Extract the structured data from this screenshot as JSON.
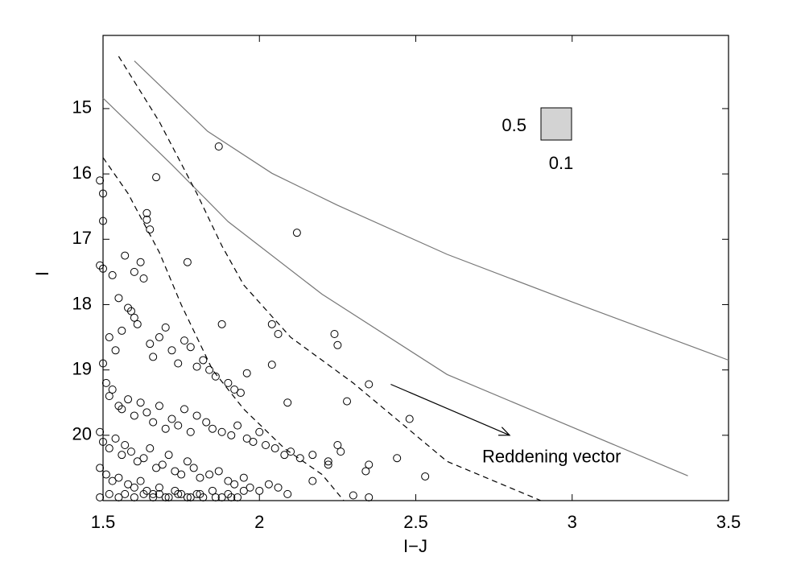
{
  "chart_data": {
    "type": "scatter",
    "x_label": "I−J",
    "y_label": "I",
    "xlim": [
      1.5,
      3.5
    ],
    "xticks": [
      1.5,
      2,
      2.5,
      3,
      3.5
    ],
    "ylim": [
      21,
      13.88
    ],
    "yticks": [
      15,
      16,
      17,
      18,
      19,
      20
    ],
    "series": [
      {
        "color": "#000000",
        "x": [
          1.87,
          2.12,
          1.67,
          1.49,
          1.5,
          1.5,
          1.64,
          1.64,
          1.65,
          1.77,
          1.88,
          2.04,
          2.06,
          2.24,
          2.25,
          2.04,
          2.35,
          1.96,
          2.28,
          2.09,
          2.48,
          2.25,
          2.26,
          2.44,
          2.35,
          2.34,
          2.53,
          2.3,
          2.35,
          2.22,
          2.22,
          2.17,
          2.17,
          1.49,
          1.5,
          1.53,
          1.55,
          1.57,
          1.6,
          1.62,
          1.63,
          1.58,
          1.6,
          1.52,
          1.54,
          1.56,
          1.59,
          1.61,
          1.65,
          1.66,
          1.68,
          1.7,
          1.72,
          1.74,
          1.76,
          1.78,
          1.8,
          1.82,
          1.84,
          1.86,
          1.9,
          1.92,
          1.94,
          1.5,
          1.51,
          1.52,
          1.53,
          1.55,
          1.56,
          1.58,
          1.6,
          1.62,
          1.64,
          1.66,
          1.68,
          1.7,
          1.72,
          1.74,
          1.76,
          1.78,
          1.8,
          1.83,
          1.85,
          1.88,
          1.91,
          1.93,
          1.96,
          1.98,
          2.0,
          2.02,
          2.05,
          2.08,
          2.1,
          2.13,
          1.49,
          1.5,
          1.52,
          1.54,
          1.56,
          1.57,
          1.59,
          1.61,
          1.63,
          1.65,
          1.67,
          1.69,
          1.71,
          1.73,
          1.75,
          1.77,
          1.79,
          1.81,
          1.84,
          1.87,
          1.9,
          1.92,
          1.95,
          1.97,
          2.0,
          2.03,
          2.06,
          2.09,
          1.49,
          1.51,
          1.53,
          1.55,
          1.58,
          1.6,
          1.62,
          1.64,
          1.66,
          1.68,
          1.7,
          1.73,
          1.75,
          1.78,
          1.8,
          1.82,
          1.85,
          1.88,
          1.9,
          1.93,
          1.95,
          1.49,
          1.52,
          1.55,
          1.57,
          1.6,
          1.63,
          1.66,
          1.68,
          1.71,
          1.74,
          1.77,
          1.81,
          1.86,
          1.91
        ],
        "y": [
          15.58,
          16.9,
          16.05,
          16.1,
          16.3,
          16.72,
          16.6,
          16.7,
          16.85,
          17.35,
          18.3,
          18.3,
          18.45,
          18.45,
          18.62,
          18.92,
          19.22,
          19.05,
          19.48,
          19.5,
          19.75,
          20.15,
          20.25,
          20.35,
          20.45,
          20.55,
          20.63,
          20.92,
          20.95,
          20.4,
          20.45,
          20.3,
          20.7,
          17.4,
          17.45,
          17.55,
          17.9,
          17.25,
          17.5,
          17.35,
          17.6,
          18.05,
          18.2,
          18.5,
          18.7,
          18.4,
          18.1,
          18.3,
          18.6,
          18.8,
          18.5,
          18.35,
          18.7,
          18.9,
          18.55,
          18.65,
          18.95,
          18.85,
          19.0,
          19.1,
          19.2,
          19.3,
          19.35,
          18.9,
          19.2,
          19.4,
          19.3,
          19.55,
          19.6,
          19.45,
          19.7,
          19.5,
          19.65,
          19.8,
          19.55,
          19.9,
          19.75,
          19.85,
          19.6,
          19.95,
          19.7,
          19.8,
          19.9,
          19.95,
          20.0,
          19.85,
          20.05,
          20.1,
          19.95,
          20.15,
          20.2,
          20.3,
          20.25,
          20.35,
          19.95,
          20.1,
          20.2,
          20.05,
          20.3,
          20.15,
          20.25,
          20.4,
          20.35,
          20.2,
          20.5,
          20.45,
          20.3,
          20.55,
          20.6,
          20.4,
          20.5,
          20.65,
          20.6,
          20.55,
          20.7,
          20.75,
          20.65,
          20.8,
          20.85,
          20.75,
          20.8,
          20.9,
          20.5,
          20.6,
          20.7,
          20.65,
          20.75,
          20.8,
          20.7,
          20.85,
          20.9,
          20.8,
          20.95,
          20.85,
          20.9,
          20.95,
          20.9,
          20.95,
          20.85,
          20.95,
          20.9,
          20.95,
          20.85,
          20.95,
          20.9,
          20.95,
          20.9,
          20.95,
          20.9,
          20.95,
          20.9,
          20.95,
          20.9,
          20.95,
          20.9,
          20.95,
          20.95
        ]
      }
    ],
    "curves": [
      {
        "style": "solid",
        "color": "#777777",
        "x": [
          1.6,
          1.835,
          2.04,
          2.25,
          2.6,
          3.0,
          3.5
        ],
        "y": [
          14.27,
          15.35,
          15.99,
          16.48,
          17.23,
          17.96,
          18.85
        ]
      },
      {
        "style": "solid",
        "color": "#777777",
        "x": [
          1.5,
          1.72,
          1.9,
          2.2,
          2.6,
          3.37
        ],
        "y": [
          14.84,
          15.86,
          16.73,
          17.84,
          19.07,
          20.62
        ]
      },
      {
        "style": "dashed",
        "color": "#000000",
        "x": [
          1.55,
          1.68,
          1.8,
          1.88,
          1.95,
          2.1,
          2.3,
          2.45,
          2.6,
          2.9
        ],
        "y": [
          14.2,
          15.2,
          16.3,
          17.1,
          17.7,
          18.5,
          19.2,
          19.8,
          20.4,
          21
        ]
      },
      {
        "style": "dashed",
        "color": "#000000",
        "x": [
          1.5,
          1.58,
          1.68,
          1.75,
          1.85,
          1.95,
          2.08,
          2.2,
          2.27
        ],
        "y": [
          15.75,
          16.3,
          17.2,
          18.0,
          19.0,
          19.6,
          20.2,
          20.6,
          21
        ]
      }
    ],
    "annotations": [
      {
        "text": "Reddening vector",
        "x1": 2.42,
        "y1": 19.22,
        "x2": 2.8,
        "y2": 20.0
      }
    ],
    "size_key": {
      "height_label": "0.5",
      "width_label": "0.1",
      "color": "#d3d3d3"
    }
  }
}
